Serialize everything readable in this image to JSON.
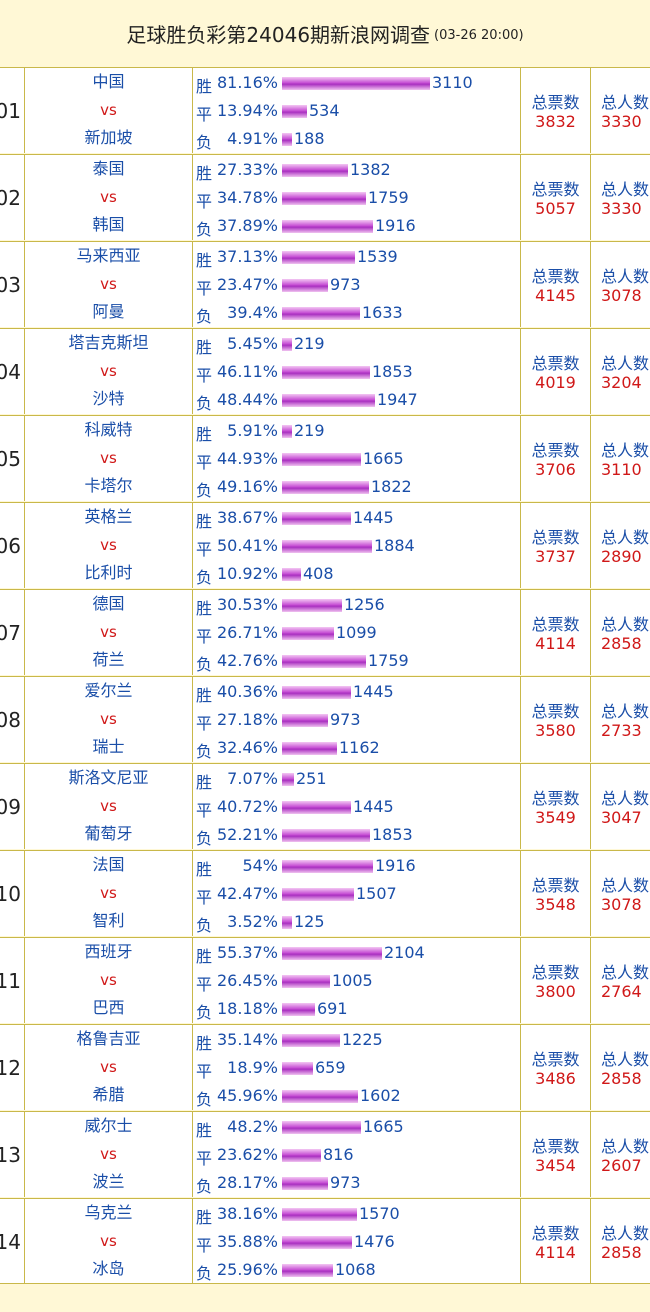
{
  "header": {
    "title": "足球胜负彩第24046期新浪网调查",
    "date": "(03-26 20:00)"
  },
  "labels": {
    "win": "胜",
    "draw": "平",
    "lose": "负",
    "vs": "vs",
    "total_votes": "总票数",
    "total_people": "总人数"
  },
  "bar_scale_max": 3110,
  "matches": [
    {
      "num": "01",
      "home": "中国",
      "away": "新加坡",
      "win_pct": "81.16%",
      "win": 3110,
      "draw_pct": "13.94%",
      "draw": 534,
      "lose_pct": "4.91%",
      "lose": 188,
      "votes": "3832",
      "people": "3330"
    },
    {
      "num": "02",
      "home": "泰国",
      "away": "韩国",
      "win_pct": "27.33%",
      "win": 1382,
      "draw_pct": "34.78%",
      "draw": 1759,
      "lose_pct": "37.89%",
      "lose": 1916,
      "votes": "5057",
      "people": "3330"
    },
    {
      "num": "03",
      "home": "马来西亚",
      "away": "阿曼",
      "win_pct": "37.13%",
      "win": 1539,
      "draw_pct": "23.47%",
      "draw": 973,
      "lose_pct": "39.4%",
      "lose": 1633,
      "votes": "4145",
      "people": "3078"
    },
    {
      "num": "04",
      "home": "塔吉克斯坦",
      "away": "沙特",
      "win_pct": "5.45%",
      "win": 219,
      "draw_pct": "46.11%",
      "draw": 1853,
      "lose_pct": "48.44%",
      "lose": 1947,
      "votes": "4019",
      "people": "3204"
    },
    {
      "num": "05",
      "home": "科威特",
      "away": "卡塔尔",
      "win_pct": "5.91%",
      "win": 219,
      "draw_pct": "44.93%",
      "draw": 1665,
      "lose_pct": "49.16%",
      "lose": 1822,
      "votes": "3706",
      "people": "3110"
    },
    {
      "num": "06",
      "home": "英格兰",
      "away": "比利时",
      "win_pct": "38.67%",
      "win": 1445,
      "draw_pct": "50.41%",
      "draw": 1884,
      "lose_pct": "10.92%",
      "lose": 408,
      "votes": "3737",
      "people": "2890"
    },
    {
      "num": "07",
      "home": "德国",
      "away": "荷兰",
      "win_pct": "30.53%",
      "win": 1256,
      "draw_pct": "26.71%",
      "draw": 1099,
      "lose_pct": "42.76%",
      "lose": 1759,
      "votes": "4114",
      "people": "2858"
    },
    {
      "num": "08",
      "home": "爱尔兰",
      "away": "瑞士",
      "win_pct": "40.36%",
      "win": 1445,
      "draw_pct": "27.18%",
      "draw": 973,
      "lose_pct": "32.46%",
      "lose": 1162,
      "votes": "3580",
      "people": "2733"
    },
    {
      "num": "09",
      "home": "斯洛文尼亚",
      "away": "葡萄牙",
      "win_pct": "7.07%",
      "win": 251,
      "draw_pct": "40.72%",
      "draw": 1445,
      "lose_pct": "52.21%",
      "lose": 1853,
      "votes": "3549",
      "people": "3047"
    },
    {
      "num": "10",
      "home": "法国",
      "away": "智利",
      "win_pct": "54%",
      "win": 1916,
      "draw_pct": "42.47%",
      "draw": 1507,
      "lose_pct": "3.52%",
      "lose": 125,
      "votes": "3548",
      "people": "3078"
    },
    {
      "num": "11",
      "home": "西班牙",
      "away": "巴西",
      "win_pct": "55.37%",
      "win": 2104,
      "draw_pct": "26.45%",
      "draw": 1005,
      "lose_pct": "18.18%",
      "lose": 691,
      "votes": "3800",
      "people": "2764"
    },
    {
      "num": "12",
      "home": "格鲁吉亚",
      "away": "希腊",
      "win_pct": "35.14%",
      "win": 1225,
      "draw_pct": "18.9%",
      "draw": 659,
      "lose_pct": "45.96%",
      "lose": 1602,
      "votes": "3486",
      "people": "2858"
    },
    {
      "num": "13",
      "home": "威尔士",
      "away": "波兰",
      "win_pct": "48.2%",
      "win": 1665,
      "draw_pct": "23.62%",
      "draw": 816,
      "lose_pct": "28.17%",
      "lose": 973,
      "votes": "3454",
      "people": "2607"
    },
    {
      "num": "14",
      "home": "乌克兰",
      "away": "冰岛",
      "win_pct": "38.16%",
      "win": 1570,
      "draw_pct": "35.88%",
      "draw": 1476,
      "lose_pct": "25.96%",
      "lose": 1068,
      "votes": "4114",
      "people": "2858"
    }
  ]
}
